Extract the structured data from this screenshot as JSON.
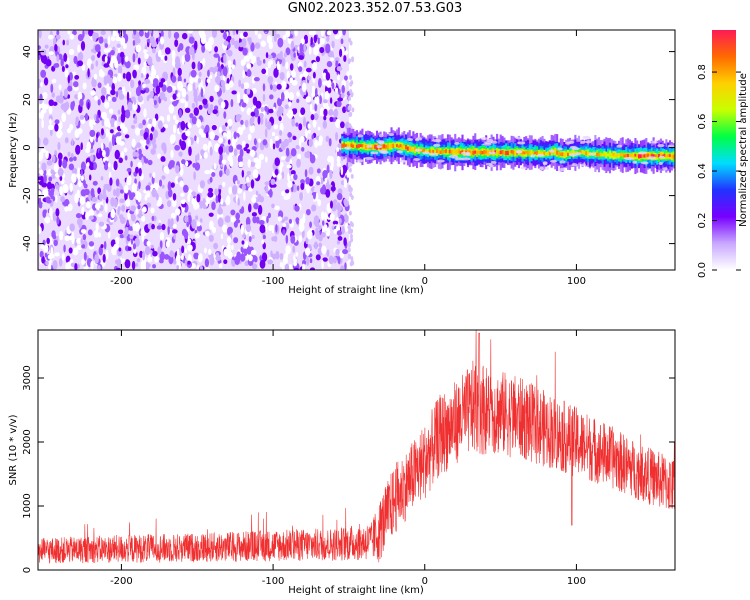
{
  "title": "GN02.2023.352.07.53.G03",
  "chart_data": [
    {
      "type": "heatmap",
      "xlabel": "Height of straight line (km)",
      "ylabel": "Frequency (Hz)",
      "xlim": [
        -255,
        165
      ],
      "ylim": [
        -51,
        49
      ],
      "xticks": [
        -200,
        -100,
        0,
        100
      ],
      "yticks": [
        -40,
        -20,
        0,
        20,
        40
      ],
      "grid": false,
      "noise_region": {
        "x_start": -255,
        "x_end": -50,
        "y_start": -51,
        "y_end": 49,
        "amplitude": [
          0.15,
          0.3
        ]
      },
      "signal_band": {
        "x": [
          -55,
          -40,
          -30,
          -20,
          -10,
          0,
          20,
          40,
          60,
          80,
          84,
          90,
          100,
          120,
          140,
          165
        ],
        "center_hz": [
          1,
          0.5,
          0,
          1,
          -0.5,
          -1.5,
          -1.8,
          -2,
          -2,
          -2.5,
          -1.5,
          -3,
          -2,
          -3,
          -3.5,
          -3.5
        ],
        "peak_amplitude": [
          0.85,
          0.9,
          0.95,
          0.85,
          0.9,
          0.8,
          0.9,
          0.95,
          0.9,
          0.8,
          0.9,
          0.85,
          0.8,
          0.8,
          0.95,
          0.9
        ]
      },
      "colorbar": {
        "label": "Normalized spectral amplitude",
        "ticks": [
          0.0,
          0.2,
          0.4,
          0.6,
          0.8
        ],
        "range": [
          0,
          0.97
        ],
        "colors": [
          "#ffffff",
          "#c8a8ff",
          "#7700ff",
          "#2233ff",
          "#00ddff",
          "#00ff44",
          "#c8ff00",
          "#ffd000",
          "#ff6a00",
          "#ff1a55"
        ]
      }
    },
    {
      "type": "line",
      "xlabel": "Height of straight line (km)",
      "ylabel": "SNR (10 * v/v)",
      "xlim": [
        -255,
        165
      ],
      "ylim": [
        0,
        3750
      ],
      "xticks": [
        -200,
        -100,
        0,
        100
      ],
      "yticks": [
        0,
        1000,
        2000,
        3000
      ],
      "grid": false,
      "series": [
        {
          "color": "#f03030",
          "envelope_x": [
            -255,
            -200,
            -150,
            -100,
            -60,
            -35,
            -30,
            -20,
            -10,
            0,
            10,
            20,
            30,
            35,
            40,
            60,
            80,
            100,
            120,
            140,
            165
          ],
          "envelope_mean": [
            300,
            330,
            350,
            380,
            400,
            450,
            600,
            1100,
            1400,
            1700,
            2100,
            2300,
            2500,
            2600,
            2500,
            2400,
            2200,
            2000,
            1800,
            1550,
            1300
          ],
          "envelope_spread": [
            200,
            220,
            230,
            250,
            260,
            300,
            500,
            550,
            550,
            600,
            650,
            650,
            700,
            800,
            700,
            650,
            600,
            550,
            500,
            450,
            450
          ],
          "peak_value": 3700
        }
      ]
    }
  ]
}
